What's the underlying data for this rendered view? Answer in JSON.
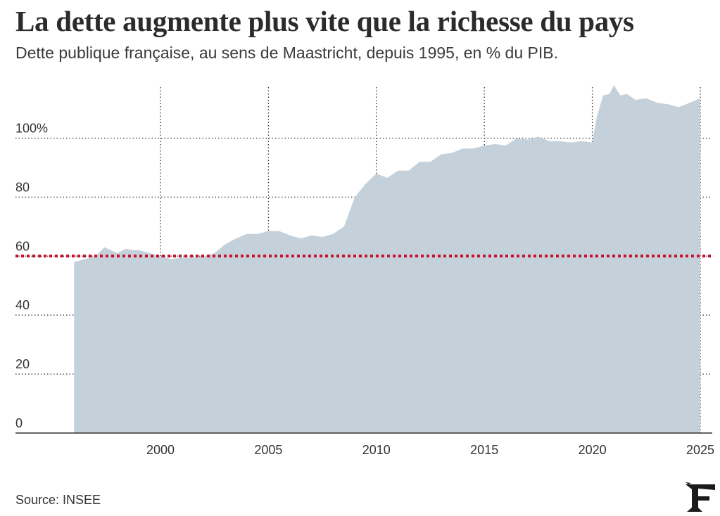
{
  "header": {
    "title": "La dette augmente plus vite que la richesse du pays",
    "subtitle": "Dette publique française, au sens de Maastricht, depuis 1995, en % du PIB."
  },
  "footer": {
    "source": "Source: INSEE",
    "logo_icon": "le-figaro-f-logo-icon"
  },
  "colors": {
    "area": "#c5d1da",
    "threshold_line": "#c8102e",
    "grid": "#333333"
  },
  "chart_data": {
    "type": "area",
    "x_ticks": [
      2000,
      2005,
      2010,
      2015,
      2020,
      2025
    ],
    "x_tick_labels": [
      "2000",
      "2005",
      "2010",
      "2015",
      "2020",
      "2025"
    ],
    "y_ticks": [
      0,
      20,
      40,
      60,
      80,
      100
    ],
    "y_tick_labels": [
      "0",
      "20",
      "40",
      "60",
      "80",
      "100%"
    ],
    "xlim": [
      1995.8,
      2025.8
    ],
    "ylim": [
      0,
      118
    ],
    "reference_line": {
      "y": 60,
      "style": "dotted"
    },
    "grid": "dotted",
    "series": [
      {
        "x": [
          1996.0,
          1996.5,
          1997.0,
          1997.4,
          1997.7,
          1998.0,
          1998.4,
          1998.7,
          1999.0,
          1999.5,
          2000.0,
          2000.5,
          2001.0,
          2001.5,
          2002.0,
          2002.5,
          2003.0,
          2003.5,
          2004.0,
          2004.5,
          2005.0,
          2005.5,
          2006.0,
          2006.5,
          2007.0,
          2007.5,
          2008.0,
          2008.5,
          2009.0,
          2009.5,
          2010.0,
          2010.5,
          2011.0,
          2011.5,
          2012.0,
          2012.5,
          2013.0,
          2013.5,
          2014.0,
          2014.5,
          2015.0,
          2015.5,
          2016.0,
          2016.5,
          2017.0,
          2017.5,
          2018.0,
          2018.5,
          2019.0,
          2019.5,
          2020.0,
          2020.2,
          2020.5,
          2020.8,
          2021.0,
          2021.3,
          2021.6,
          2022.0,
          2022.5,
          2023.0,
          2023.5,
          2024.0,
          2024.5,
          2025.0
        ],
        "values": [
          58,
          59,
          60,
          63,
          62,
          61,
          62.5,
          62,
          62,
          61,
          60,
          59,
          59.5,
          59.5,
          60,
          61,
          64,
          66,
          67.5,
          67.5,
          68.5,
          68.5,
          67,
          66,
          67,
          66.5,
          67.5,
          70,
          80,
          84.5,
          88,
          86.5,
          89,
          89,
          92,
          92,
          94.5,
          95,
          96.5,
          96.5,
          97.5,
          98,
          97.5,
          100,
          99.5,
          100.5,
          99,
          99,
          98.5,
          99,
          98.5,
          107,
          114.5,
          115,
          118,
          114.5,
          115,
          113,
          113.5,
          112,
          111.5,
          110.5,
          112,
          113.5
        ]
      }
    ]
  }
}
